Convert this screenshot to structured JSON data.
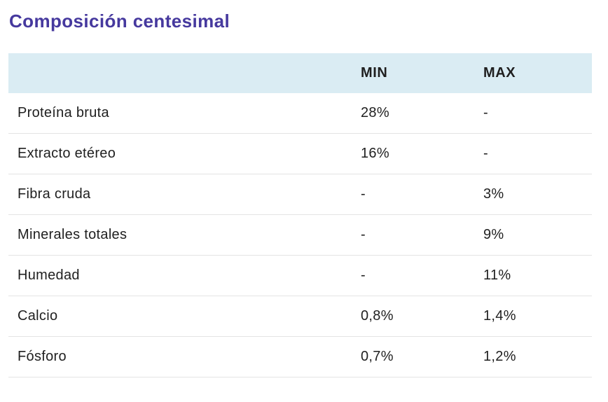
{
  "page": {
    "title": "Composición centesimal"
  },
  "colors": {
    "title_text": "#46399e",
    "header_background": "#daecf3",
    "row_border": "#e4e4e4",
    "body_text": "#1f1f1f"
  },
  "table": {
    "headers": {
      "name": "",
      "min": "MIN",
      "max": "MAX"
    },
    "rows": [
      {
        "name": "Proteína bruta",
        "min": "28%",
        "max": "-"
      },
      {
        "name": "Extracto etéreo",
        "min": "16%",
        "max": "-"
      },
      {
        "name": "Fibra cruda",
        "min": "-",
        "max": "3%"
      },
      {
        "name": "Minerales totales",
        "min": "-",
        "max": "9%"
      },
      {
        "name": "Humedad",
        "min": "-",
        "max": "11%"
      },
      {
        "name": "Calcio",
        "min": "0,8%",
        "max": "1,4%"
      },
      {
        "name": "Fósforo",
        "min": "0,7%",
        "max": "1,2%"
      }
    ]
  }
}
